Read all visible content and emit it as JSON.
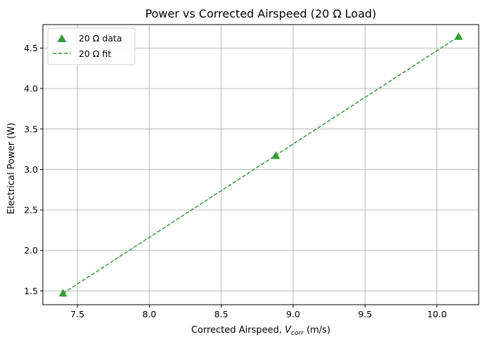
{
  "chart_data": {
    "type": "scatter",
    "title": "Power vs Corrected Airspeed (20 Ω Load)",
    "xlabel_prefix": "Corrected Airspeed, ",
    "xlabel_var": "V",
    "xlabel_sub": "corr",
    "xlabel_suffix": " (m/s)",
    "ylabel": "Electrical Power (W)",
    "xlim": [
      7.26,
      10.29
    ],
    "ylim": [
      1.33,
      4.79
    ],
    "x_ticks": [
      "7.5",
      "8.0",
      "8.5",
      "9.0",
      "9.5",
      "10.0"
    ],
    "y_ticks": [
      "1.5",
      "2.0",
      "2.5",
      "3.0",
      "3.5",
      "4.0",
      "4.5"
    ],
    "grid": true,
    "legend_position": "top-left",
    "series": [
      {
        "name": "20 Ω data",
        "kind": "scatter",
        "marker": "triangle",
        "color": "#2ca02c",
        "x": [
          7.4,
          8.88,
          10.15
        ],
        "y": [
          1.47,
          3.17,
          4.64
        ]
      },
      {
        "name": "20 Ω fit",
        "kind": "line",
        "style": "dashed",
        "color": "#2ca02c",
        "x": [
          7.4,
          10.15
        ],
        "y": [
          1.47,
          4.64
        ]
      }
    ]
  }
}
